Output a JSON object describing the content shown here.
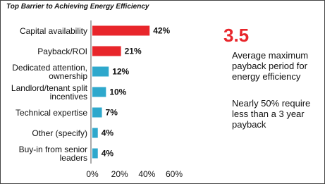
{
  "chart_data": {
    "type": "bar",
    "orientation": "horizontal",
    "title": "Top Barrier to Achieving Energy Efficiency",
    "categories": [
      "Capital availability",
      "Payback/ROI",
      "Dedicated attention, ownership",
      "Landlord/tenant split incentives",
      "Technical expertise",
      "Other (specify)",
      "Buy-in from senior leaders"
    ],
    "values": [
      42,
      21,
      12,
      10,
      7,
      4,
      4
    ],
    "value_labels": [
      "42%",
      "21%",
      "12%",
      "10%",
      "7%",
      "4%",
      "4%"
    ],
    "colors": [
      "#e8262b",
      "#e8262b",
      "#2ea8cc",
      "#2ea8cc",
      "#2ea8cc",
      "#2ea8cc",
      "#2ea8cc"
    ],
    "xlim": [
      0,
      60
    ],
    "xticks": [
      {
        "value": 0,
        "label": "0%"
      },
      {
        "value": 20,
        "label": "20%"
      },
      {
        "value": 40,
        "label": "40%"
      },
      {
        "value": 60,
        "label": "60%"
      }
    ],
    "grid": false,
    "annotations": [
      "3.5",
      "Average maximum payback period for energy efficiency",
      "Nearly 50% require less than a 3 year payback"
    ]
  }
}
